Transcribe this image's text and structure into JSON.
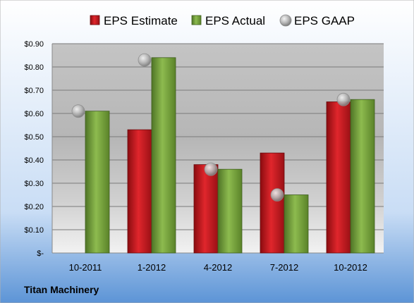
{
  "chart_data": {
    "type": "bar",
    "categories": [
      "10-2011",
      "1-2012",
      "4-2012",
      "7-2012",
      "10-2012"
    ],
    "series": [
      {
        "name": "EPS Estimate",
        "kind": "bar",
        "color": "#c0141c",
        "values": [
          null,
          0.53,
          0.38,
          0.43,
          0.65
        ]
      },
      {
        "name": "EPS Actual",
        "kind": "bar",
        "color": "#76a33c",
        "values": [
          0.61,
          0.84,
          0.36,
          0.25,
          0.66
        ]
      },
      {
        "name": "EPS GAAP",
        "kind": "marker",
        "color": "#b8b8b8",
        "values": [
          0.61,
          0.83,
          0.36,
          0.25,
          0.66
        ]
      }
    ],
    "yticks": [
      "$-",
      "$0.10",
      "$0.20",
      "$0.30",
      "$0.40",
      "$0.50",
      "$0.60",
      "$0.70",
      "$0.80",
      "$0.90"
    ],
    "ylim": [
      0,
      0.9
    ],
    "grid": true,
    "legend": "top",
    "company": "Titan Machinery"
  }
}
